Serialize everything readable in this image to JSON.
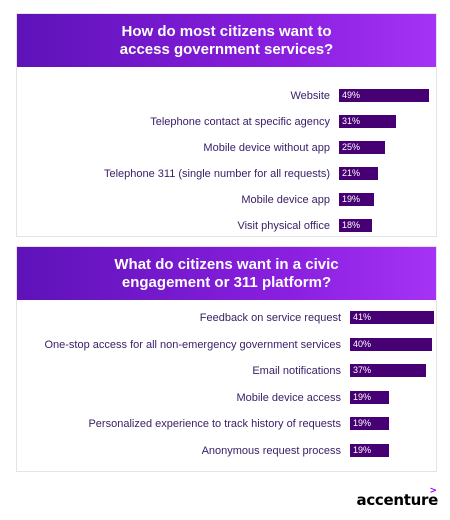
{
  "chart_data": [
    {
      "type": "bar",
      "title": "How do most citizens want to\naccess government services?",
      "categories": [
        "Website",
        "Telephone contact at specific agency",
        "Mobile device without app",
        "Telephone 311 (single number for all requests)",
        "Mobile device app",
        "Visit physical office"
      ],
      "values": [
        49,
        31,
        25,
        21,
        19,
        18
      ],
      "value_labels": [
        "49%",
        "31%",
        "25%",
        "21%",
        "19%",
        "18%"
      ],
      "unit": "%",
      "orientation": "horizontal",
      "bar_color": "#460073"
    },
    {
      "type": "bar",
      "title": "What do citizens want in a civic\nengagement or 311 platform?",
      "categories": [
        "Feedback on service request",
        "One-stop access for all non-emergency government services",
        "Email notifications",
        "Mobile device access",
        "Personalized experience to track history of requests",
        "Anonymous request process"
      ],
      "values": [
        41,
        40,
        37,
        19,
        19,
        19
      ],
      "value_labels": [
        "41%",
        "40%",
        "37%",
        "19%",
        "19%",
        "19%"
      ],
      "unit": "%",
      "orientation": "horizontal",
      "bar_color": "#460073"
    }
  ],
  "brand": {
    "name": "accenture",
    "mark": ">",
    "accent_color": "#a100ff"
  },
  "colors": {
    "banner_start": "#5e12b8",
    "banner_end": "#a533f5",
    "label_text": "#3b2069"
  }
}
